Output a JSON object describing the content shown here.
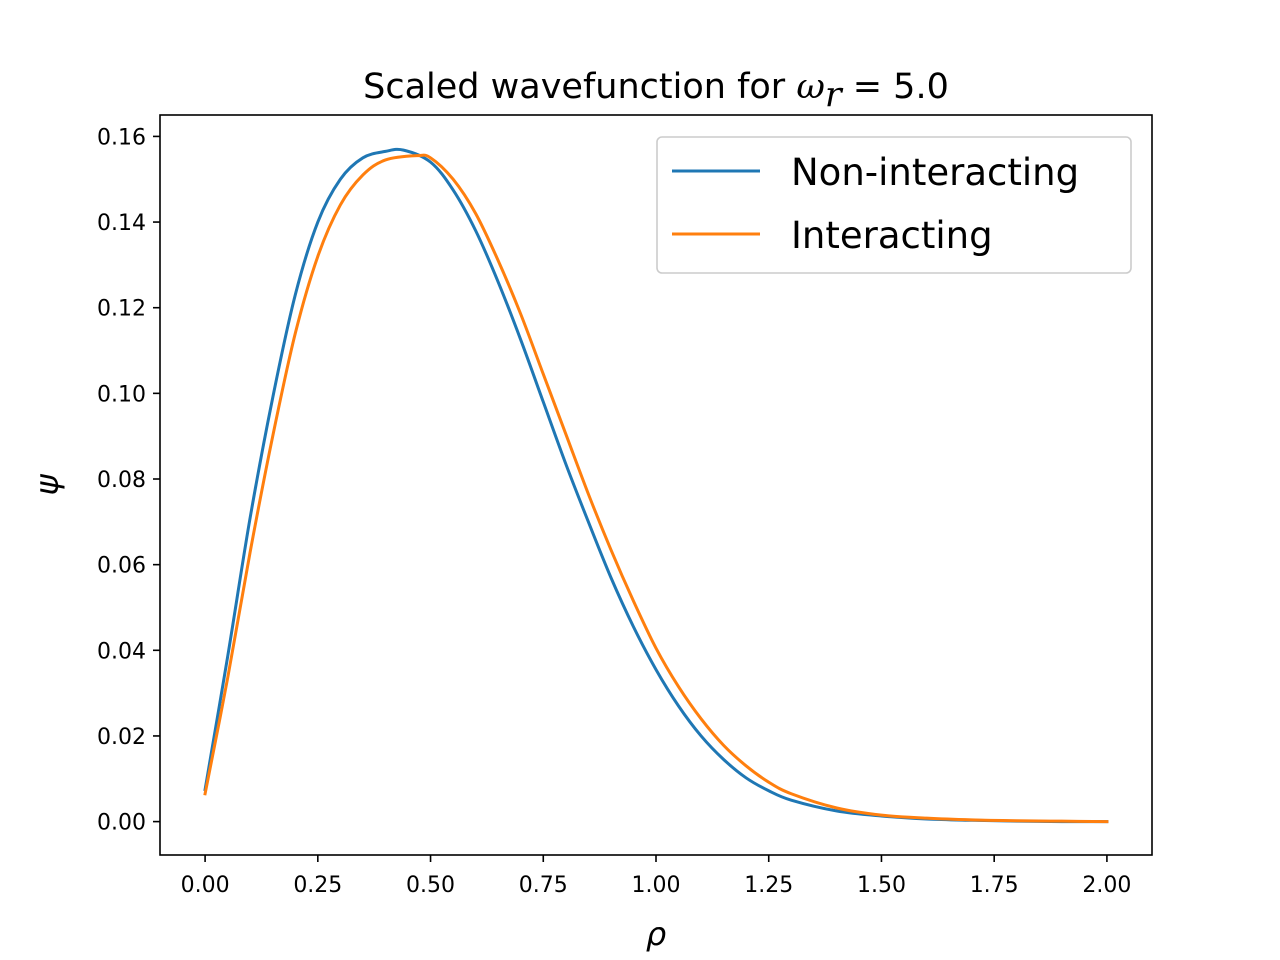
{
  "chart_data": {
    "type": "line",
    "title_prefix": "Scaled wavefunction for ",
    "title_math": "ω",
    "title_math_subscript": "r",
    "title_math_suffix": " = 5.0",
    "xlabel": "ρ",
    "ylabel": "ψ",
    "xlim": [
      -0.1,
      2.1
    ],
    "ylim": [
      -0.0078,
      0.165
    ],
    "xticks": [
      "0.00",
      "0.25",
      "0.50",
      "0.75",
      "1.00",
      "1.25",
      "1.50",
      "1.75",
      "2.00"
    ],
    "yticks": [
      "0.00",
      "0.02",
      "0.04",
      "0.06",
      "0.08",
      "0.10",
      "0.12",
      "0.14",
      "0.16"
    ],
    "grid": false,
    "legend_position": "top-right",
    "series": [
      {
        "name": "Non-interacting",
        "color": "#1f77b4",
        "x": [
          0.0,
          0.05,
          0.1,
          0.15,
          0.2,
          0.25,
          0.3,
          0.35,
          0.4,
          0.44,
          0.5,
          0.55,
          0.6,
          0.65,
          0.7,
          0.75,
          0.8,
          0.85,
          0.9,
          0.95,
          1.0,
          1.05,
          1.1,
          1.15,
          1.2,
          1.25,
          1.3,
          1.4,
          1.5,
          1.6,
          1.7,
          1.8,
          1.9,
          2.0
        ],
        "y": [
          0.0075,
          0.0385,
          0.071,
          0.099,
          0.123,
          0.14,
          0.15,
          0.155,
          0.1565,
          0.1568,
          0.154,
          0.1475,
          0.138,
          0.126,
          0.1125,
          0.098,
          0.0835,
          0.07,
          0.057,
          0.0455,
          0.0355,
          0.027,
          0.02,
          0.0145,
          0.0102,
          0.0072,
          0.005,
          0.0025,
          0.0013,
          0.0006,
          0.0003,
          0.0001,
          0.0,
          0.0
        ]
      },
      {
        "name": "Interacting",
        "color": "#ff7f0e",
        "x": [
          0.0,
          0.05,
          0.1,
          0.15,
          0.2,
          0.25,
          0.3,
          0.35,
          0.4,
          0.47,
          0.5,
          0.55,
          0.6,
          0.65,
          0.7,
          0.75,
          0.8,
          0.85,
          0.9,
          0.95,
          1.0,
          1.05,
          1.1,
          1.15,
          1.2,
          1.25,
          1.3,
          1.4,
          1.5,
          1.6,
          1.7,
          1.8,
          1.9,
          2.0
        ],
        "y": [
          0.0065,
          0.0335,
          0.063,
          0.09,
          0.114,
          0.132,
          0.144,
          0.151,
          0.1545,
          0.1555,
          0.155,
          0.15,
          0.142,
          0.131,
          0.1185,
          0.1045,
          0.0905,
          0.0765,
          0.0635,
          0.0515,
          0.0405,
          0.0315,
          0.024,
          0.0178,
          0.013,
          0.0092,
          0.0065,
          0.0032,
          0.0015,
          0.0008,
          0.0004,
          0.0002,
          0.0001,
          0.0
        ]
      }
    ]
  }
}
